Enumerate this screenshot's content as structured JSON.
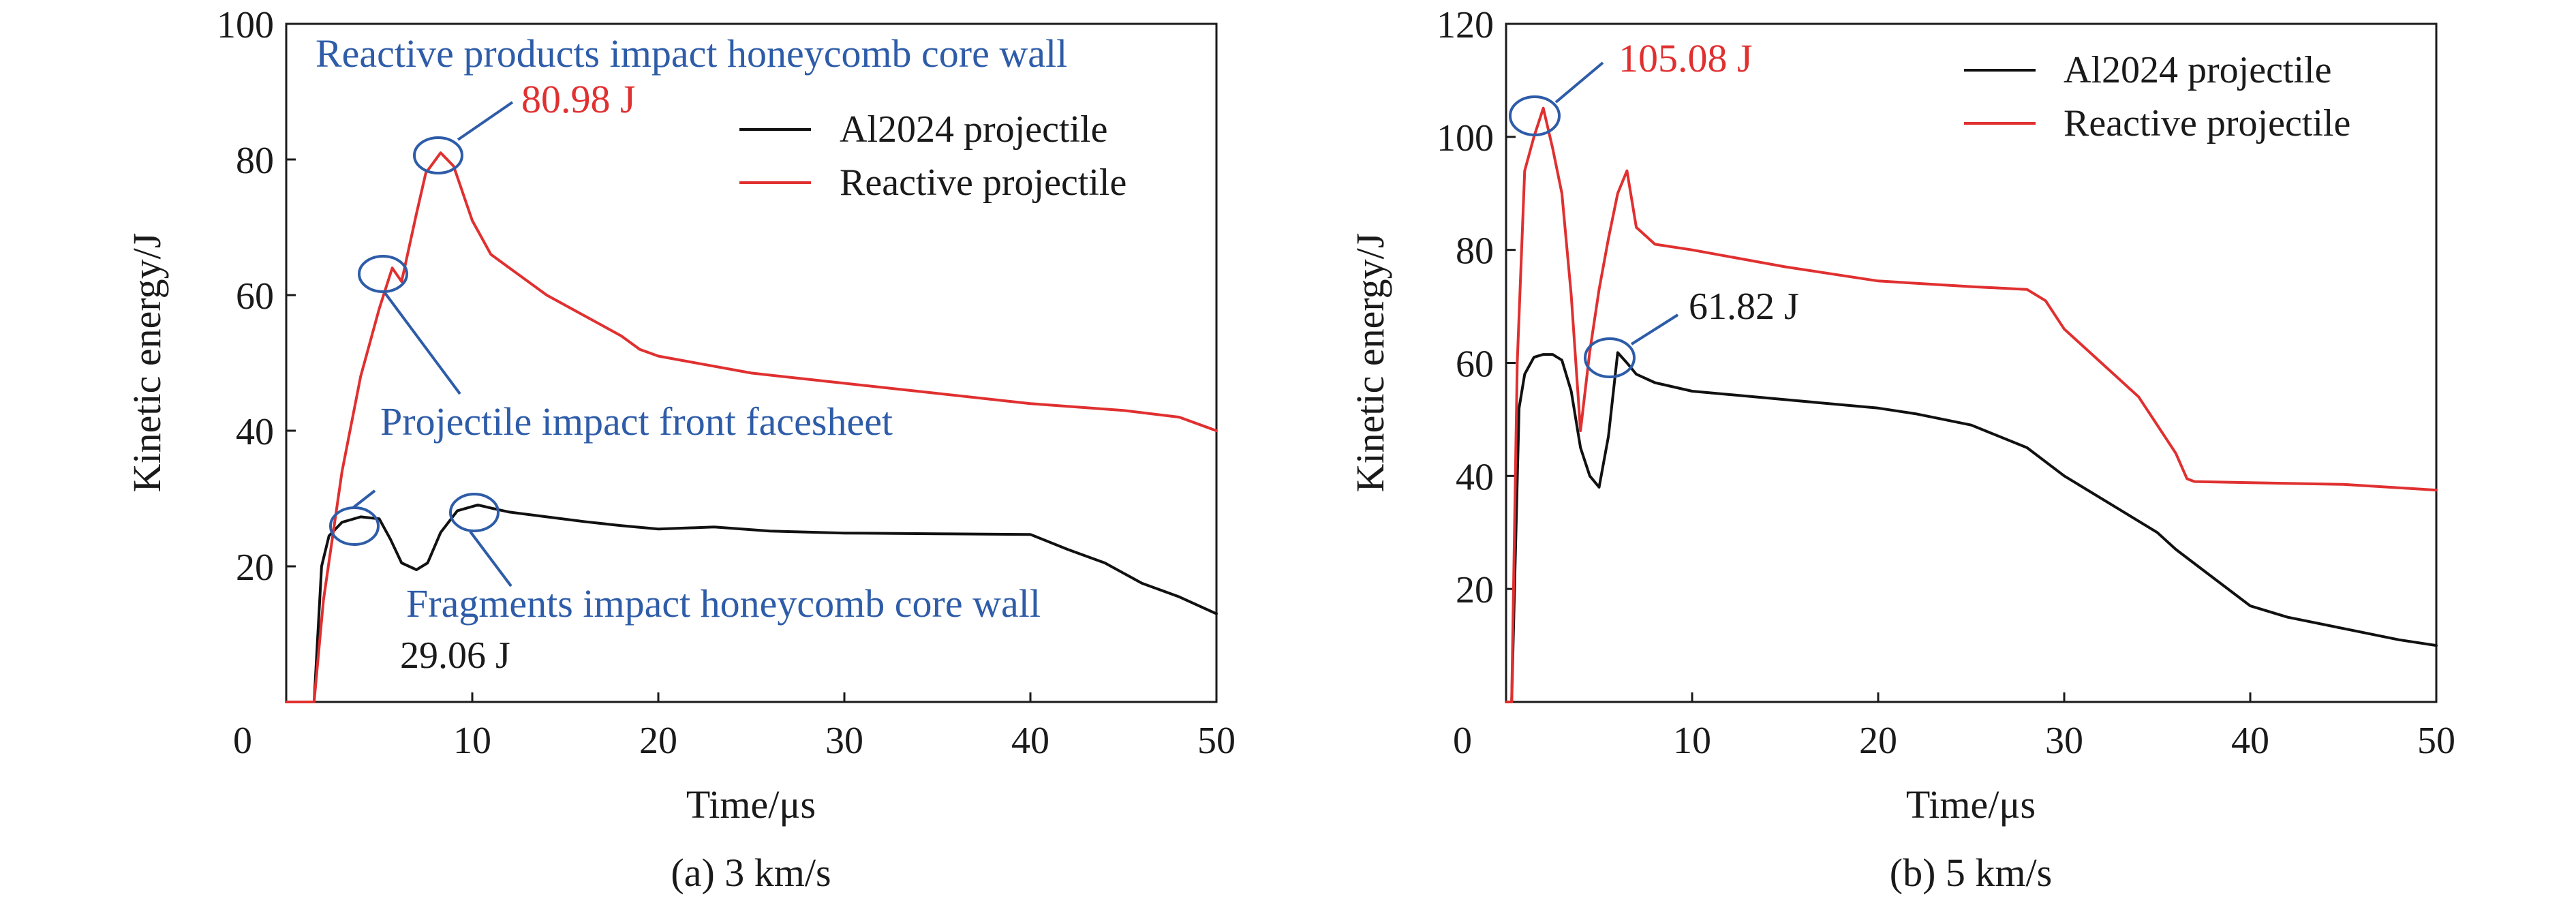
{
  "colors": {
    "al2024": "#111111",
    "reactive": "#e03030",
    "annotation": "#2e5ca8",
    "axis": "#1a1a1a"
  },
  "chart_data": [
    {
      "type": "line",
      "caption": "(a) 3 km/s",
      "xlabel": "Time/μs",
      "ylabel": "Kinetic energy/J",
      "xlim": [
        0,
        50
      ],
      "ylim": [
        0,
        100
      ],
      "xticks": [
        0,
        10,
        20,
        30,
        40,
        50
      ],
      "yticks": [
        20,
        40,
        60,
        80,
        100
      ],
      "x0_label": "0",
      "legend_position": "top-right",
      "series": [
        {
          "name": "Al2024 projectile",
          "color": "#111111",
          "x": [
            0,
            1.5,
            1.9,
            2.3,
            3,
            4,
            5,
            5.6,
            6.2,
            7,
            7.6,
            8.3,
            9.2,
            10.3,
            11,
            12,
            14,
            16,
            18,
            20,
            23,
            26,
            30,
            35,
            40,
            42,
            44,
            46,
            48,
            50
          ],
          "y": [
            0,
            0,
            20,
            24.5,
            26.5,
            27.3,
            27,
            24,
            20.5,
            19.5,
            20.5,
            25,
            28.2,
            29.06,
            28.6,
            28,
            27.3,
            26.6,
            26,
            25.5,
            25.8,
            25.2,
            24.9,
            24.8,
            24.7,
            22.5,
            20.5,
            17.5,
            15.5,
            13
          ]
        },
        {
          "name": "Reactive projectile",
          "color": "#e03030",
          "x": [
            0,
            1.5,
            2,
            3,
            4,
            5,
            5.7,
            6.2,
            7,
            7.5,
            8.3,
            9,
            10,
            11,
            12,
            14,
            16,
            18,
            19,
            20,
            25,
            30,
            35,
            40,
            45,
            48,
            50
          ],
          "y": [
            0,
            0,
            15,
            34,
            48,
            58,
            64,
            62,
            72,
            78,
            80.98,
            79,
            71,
            66,
            64,
            60,
            57,
            54,
            52,
            51,
            48.5,
            47,
            45.5,
            44,
            43,
            42,
            40
          ]
        }
      ],
      "annotations": {
        "reactive_peak_label": "80.98 J",
        "reactive_wall": "Reactive products impact honeycomb core wall",
        "front_facesheet": "Projectile impact front facesheet",
        "fragments_wall": "Fragments impact honeycomb core wall",
        "al_peak_label": "29.06 J"
      }
    },
    {
      "type": "line",
      "caption": "(b) 5 km/s",
      "xlabel": "Time/μs",
      "ylabel": "Kinetic energy/J",
      "xlim": [
        0,
        50
      ],
      "ylim": [
        0,
        120
      ],
      "xticks": [
        0,
        10,
        20,
        30,
        40,
        50
      ],
      "yticks": [
        20,
        40,
        60,
        80,
        100,
        120
      ],
      "x0_label": "0",
      "legend_position": "top-right",
      "series": [
        {
          "name": "Al2024 projectile",
          "color": "#111111",
          "x": [
            0,
            0.3,
            0.7,
            1,
            1.5,
            2,
            2.5,
            3,
            3.5,
            4,
            4.5,
            5,
            5.5,
            6,
            6.5,
            7,
            8,
            10,
            15,
            20,
            22,
            25,
            28,
            30,
            33,
            35,
            36,
            38,
            40,
            42,
            45,
            48,
            50
          ],
          "y": [
            0,
            0,
            52,
            58,
            61,
            61.5,
            61.5,
            60.5,
            55,
            45,
            40,
            38,
            47,
            61.82,
            60,
            58,
            56.5,
            55,
            53.5,
            52,
            51,
            49,
            45,
            40,
            34,
            30,
            27,
            22,
            17,
            15,
            13,
            11,
            10
          ]
        },
        {
          "name": "Reactive projectile",
          "color": "#e03030",
          "x": [
            0,
            0.3,
            0.6,
            1,
            1.5,
            2,
            2.5,
            3,
            3.5,
            4,
            4.5,
            5,
            5.5,
            6,
            6.5,
            7,
            8,
            10,
            15,
            20,
            25,
            28,
            29,
            30,
            32,
            34,
            35,
            36,
            36.6,
            37,
            40,
            45,
            50
          ],
          "y": [
            0,
            0,
            60,
            94,
            100,
            105.08,
            98,
            90,
            72,
            48,
            62,
            73,
            82,
            90,
            94,
            84,
            81,
            80,
            77,
            74.5,
            73.5,
            73,
            71,
            66,
            60,
            54,
            49,
            44,
            39.5,
            39,
            38.8,
            38.5,
            37.5
          ]
        }
      ],
      "annotations": {
        "reactive_peak_label": "105.08 J",
        "al_peak_label": "61.82 J"
      }
    }
  ]
}
